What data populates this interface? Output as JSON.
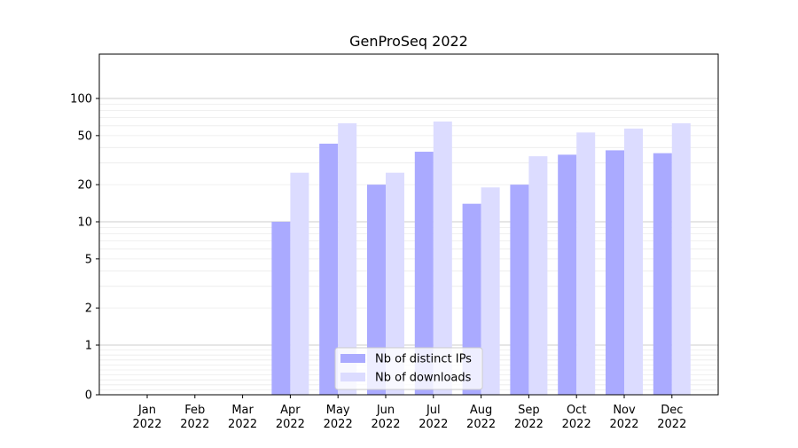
{
  "chart_data": {
    "type": "bar",
    "title": "GenProSeq 2022",
    "xlabel": "",
    "ylabel": "",
    "y_scale": "symlog",
    "ylim": [
      0,
      120
    ],
    "y_ticks": [
      0,
      1,
      2,
      5,
      10,
      20,
      50,
      100
    ],
    "y_tick_labels": [
      "0",
      "1",
      "2",
      "5",
      "10",
      "20",
      "50",
      "100"
    ],
    "grid": "horizontal",
    "legend_position": "bottom-center",
    "categories": [
      {
        "month": "Jan",
        "year": "2022"
      },
      {
        "month": "Feb",
        "year": "2022"
      },
      {
        "month": "Mar",
        "year": "2022"
      },
      {
        "month": "Apr",
        "year": "2022"
      },
      {
        "month": "May",
        "year": "2022"
      },
      {
        "month": "Jun",
        "year": "2022"
      },
      {
        "month": "Jul",
        "year": "2022"
      },
      {
        "month": "Aug",
        "year": "2022"
      },
      {
        "month": "Sep",
        "year": "2022"
      },
      {
        "month": "Oct",
        "year": "2022"
      },
      {
        "month": "Nov",
        "year": "2022"
      },
      {
        "month": "Dec",
        "year": "2022"
      }
    ],
    "series": [
      {
        "name": "Nb of distinct IPs",
        "color": "#aaaaff",
        "values": [
          0,
          0,
          0,
          10,
          43,
          20,
          37,
          14,
          20,
          35,
          38,
          36
        ]
      },
      {
        "name": "Nb of downloads",
        "color": "#dcdcff",
        "values": [
          0,
          0,
          0,
          25,
          63,
          25,
          65,
          19,
          34,
          53,
          57,
          63
        ]
      }
    ]
  }
}
